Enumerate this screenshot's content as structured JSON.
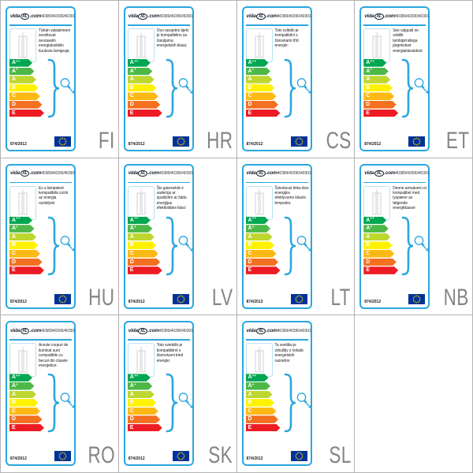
{
  "colors": {
    "accent": "#2aa7de",
    "accent_light": "#b9e2f5",
    "grid_line": "#b3b3b3",
    "lang_code": "#858585",
    "text": "#1c1c1c",
    "eu_flag": "#003399",
    "eu_star": "#ffcc00"
  },
  "header": {
    "logo": {
      "prefix": "vida",
      "mark": "XL",
      "suffix": ".com"
    },
    "product_numbers": "40389/40390/40391"
  },
  "footer": {
    "regulation": "874/2012"
  },
  "energy_scale": {
    "classes": [
      {
        "label": "A",
        "sup": "++",
        "color": "#00a651"
      },
      {
        "label": "A",
        "sup": "+",
        "color": "#4db848"
      },
      {
        "label": "A",
        "sup": "",
        "color": "#bed630"
      },
      {
        "label": "B",
        "sup": "",
        "color": "#fff200"
      },
      {
        "label": "C",
        "sup": "",
        "color": "#fdb913"
      },
      {
        "label": "D",
        "sup": "",
        "color": "#f37021"
      },
      {
        "label": "E",
        "sup": "",
        "color": "#ed1c24"
      }
    ]
  },
  "cards": [
    {
      "lang": "FI",
      "text": "Tähän valaisimeen soveltuvat seuraaviin energialuokkiin kuuluvia lamppuja:"
    },
    {
      "lang": "HR",
      "text": "Ovo rasvjetno tijelo je kompatibilno sa žaruljama energetskih klasa:"
    },
    {
      "lang": "CS",
      "text": "Toto svítidlo je kompatibilní s žárovkami tříd energie:"
    },
    {
      "lang": "ET",
      "text": "See valgusti on sobilik lambipirnidega järgmistest energiaklassidest:"
    },
    {
      "lang": "HU",
      "text": "Ez a lámpatest kompatibilis izzók az energia osztályok:"
    },
    {
      "lang": "LV",
      "text": "Šis gaismeklis ir saderīgs ar spuldzēm ar šādu enerģijas efektivitātes klasi:"
    },
    {
      "lang": "LT",
      "text": "Šviestuvui tinka šios energijos efektyvumo klasės lemputės:"
    },
    {
      "lang": "NB",
      "text": "Denne armaturen er kompatibel med lyspærer av følgende energiklasser:"
    },
    {
      "lang": "RO",
      "text": "Aceste corpuri de iluminat sunt compatibile cu becuri din clasele energetice:"
    },
    {
      "lang": "SK",
      "text": "Toto svietidlo je kompatibilné s žiarovkami tried energie:"
    },
    {
      "lang": "SL",
      "text": "Ta svetilka je združljiv z čebulic energetskih razredov:"
    }
  ]
}
